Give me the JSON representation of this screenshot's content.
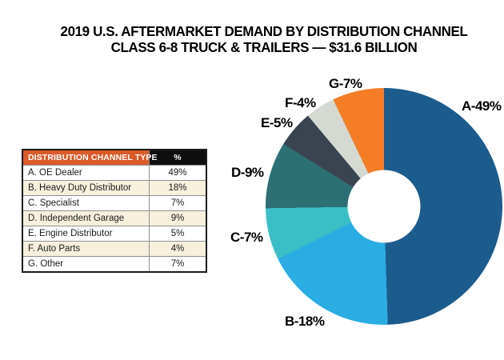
{
  "title": {
    "line1": "2019 U.S. AFTERMARKET DEMAND BY DISTRIBUTION CHANNEL",
    "line2": "CLASS 6-8 TRUCK & TRAILERS — $31.6 BILLION"
  },
  "table": {
    "headers": [
      "DISTRIBUTION CHANNEL TYPE",
      "%"
    ],
    "rows": [
      {
        "label": "A. OE Dealer",
        "value": "49%"
      },
      {
        "label": "B. Heavy Duty Distributor",
        "value": "18%"
      },
      {
        "label": "C. Specialist",
        "value": "7%"
      },
      {
        "label": "D. Independent Garage",
        "value": "9%"
      },
      {
        "label": "E. Engine Distributor",
        "value": "5%"
      },
      {
        "label": "F. Auto Parts",
        "value": "4%"
      },
      {
        "label": "G. Other",
        "value": "7%"
      }
    ],
    "colors": {
      "header_label_bg": "#DB5A28",
      "header_value_bg": "#0f0f0f",
      "header_text": "#ffffff",
      "stripe_bg": "#F7F0DC",
      "row_bg": "#ffffff"
    }
  },
  "chart_data": {
    "type": "pie",
    "donut": true,
    "start_angle_deg": 0,
    "direction": "clockwise",
    "title": "2019 U.S. Aftermarket Demand by Distribution Channel — Class 6-8 Truck & Trailers — $31.6 Billion",
    "slices": [
      {
        "label": "A. OE Dealer",
        "percent": 49,
        "color": "#1C5C8C",
        "callout": "A-49%"
      },
      {
        "label": "B. Heavy Duty Distributor",
        "percent": 18,
        "color": "#29ADE3",
        "callout": "B-18%"
      },
      {
        "label": "C. Specialist",
        "percent": 7,
        "color": "#3BBFC7",
        "callout": "C-7%"
      },
      {
        "label": "D. Independent Garage",
        "percent": 9,
        "color": "#2D7074",
        "callout": "D-9%"
      },
      {
        "label": "E. Engine Distributor",
        "percent": 5,
        "color": "#3A4450",
        "callout": "E-5%"
      },
      {
        "label": "F. Auto Parts",
        "percent": 4,
        "color": "#D4DAD2",
        "callout": "F-4%"
      },
      {
        "label": "G. Other",
        "percent": 7,
        "color": "#F47D26",
        "callout": "G-7%"
      }
    ]
  }
}
